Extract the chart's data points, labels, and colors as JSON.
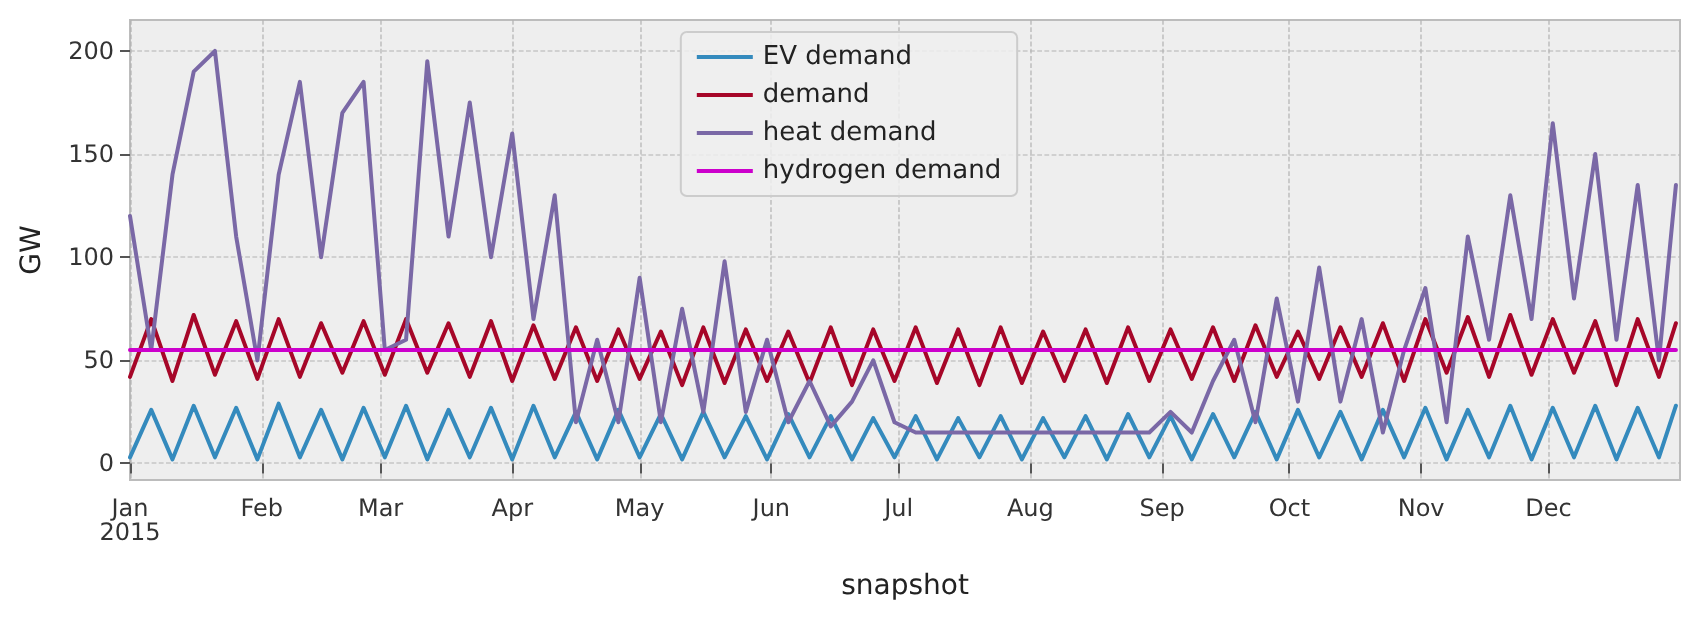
{
  "chart_data": {
    "type": "line",
    "xlabel": "snapshot",
    "ylabel": "GW",
    "x": [
      "2015-01-01",
      "2015-01-06",
      "2015-01-11",
      "2015-01-16",
      "2015-01-21",
      "2015-01-26",
      "2015-01-31",
      "2015-02-05",
      "2015-02-10",
      "2015-02-15",
      "2015-02-20",
      "2015-02-25",
      "2015-03-02",
      "2015-03-07",
      "2015-03-12",
      "2015-03-17",
      "2015-03-22",
      "2015-03-27",
      "2015-04-01",
      "2015-04-06",
      "2015-04-11",
      "2015-04-16",
      "2015-04-21",
      "2015-04-26",
      "2015-05-01",
      "2015-05-06",
      "2015-05-11",
      "2015-05-16",
      "2015-05-21",
      "2015-05-26",
      "2015-05-31",
      "2015-06-05",
      "2015-06-10",
      "2015-06-15",
      "2015-06-20",
      "2015-06-25",
      "2015-06-30",
      "2015-07-05",
      "2015-07-10",
      "2015-07-15",
      "2015-07-20",
      "2015-07-25",
      "2015-07-30",
      "2015-08-04",
      "2015-08-09",
      "2015-08-14",
      "2015-08-19",
      "2015-08-24",
      "2015-08-29",
      "2015-09-03",
      "2015-09-08",
      "2015-09-13",
      "2015-09-18",
      "2015-09-23",
      "2015-09-28",
      "2015-10-03",
      "2015-10-08",
      "2015-10-13",
      "2015-10-18",
      "2015-10-23",
      "2015-10-28",
      "2015-11-02",
      "2015-11-07",
      "2015-11-12",
      "2015-11-17",
      "2015-11-22",
      "2015-11-27",
      "2015-12-02",
      "2015-12-07",
      "2015-12-12",
      "2015-12-17",
      "2015-12-22",
      "2015-12-27",
      "2015-12-31"
    ],
    "series": [
      {
        "name": "EV demand",
        "color": "#348abd",
        "values": [
          3,
          26,
          2,
          28,
          3,
          27,
          2,
          29,
          3,
          26,
          2,
          27,
          3,
          28,
          2,
          26,
          3,
          27,
          2,
          28,
          3,
          25,
          2,
          26,
          3,
          24,
          2,
          25,
          3,
          23,
          2,
          24,
          3,
          23,
          2,
          22,
          3,
          23,
          2,
          22,
          3,
          23,
          2,
          22,
          3,
          23,
          2,
          24,
          3,
          23,
          2,
          24,
          3,
          25,
          2,
          26,
          3,
          25,
          2,
          26,
          3,
          27,
          2,
          26,
          3,
          28,
          2,
          27,
          3,
          28,
          2,
          27,
          3,
          28
        ]
      },
      {
        "name": "demand",
        "color": "#a60628",
        "values": [
          42,
          70,
          40,
          72,
          43,
          69,
          41,
          70,
          42,
          68,
          44,
          69,
          43,
          70,
          44,
          68,
          42,
          69,
          40,
          67,
          41,
          66,
          40,
          65,
          41,
          64,
          38,
          66,
          39,
          65,
          40,
          64,
          39,
          66,
          38,
          65,
          40,
          66,
          39,
          65,
          38,
          66,
          39,
          64,
          40,
          65,
          39,
          66,
          40,
          65,
          41,
          66,
          40,
          67,
          42,
          64,
          41,
          66,
          42,
          68,
          40,
          70,
          44,
          71,
          42,
          72,
          43,
          70,
          44,
          69,
          38,
          70,
          42,
          68
        ]
      },
      {
        "name": "heat demand",
        "color": "#7a68a6",
        "values": [
          120,
          55,
          140,
          190,
          200,
          110,
          50,
          140,
          185,
          100,
          170,
          185,
          55,
          60,
          195,
          110,
          175,
          100,
          160,
          70,
          130,
          20,
          60,
          20,
          90,
          20,
          75,
          25,
          98,
          25,
          60,
          20,
          40,
          18,
          30,
          50,
          20,
          15,
          15,
          15,
          15,
          15,
          15,
          15,
          15,
          15,
          15,
          15,
          15,
          25,
          15,
          40,
          60,
          20,
          80,
          30,
          95,
          30,
          70,
          15,
          55,
          85,
          20,
          110,
          60,
          130,
          70,
          165,
          80,
          150,
          60,
          135,
          50,
          135
        ]
      },
      {
        "name": "hydrogen demand",
        "color": "#cc00cc",
        "x": [
          "2015-01-01",
          "2015-12-31"
        ],
        "values": [
          55,
          55
        ]
      }
    ],
    "xlim": [
      "2015-01-01",
      "2015-12-31T23:00"
    ],
    "xticks": [
      {
        "value": "2015-01-01",
        "label": "Jan\n2015"
      },
      {
        "value": "2015-02-01",
        "label": "Feb"
      },
      {
        "value": "2015-03-01",
        "label": "Mar"
      },
      {
        "value": "2015-04-01",
        "label": "Apr"
      },
      {
        "value": "2015-05-01",
        "label": "May"
      },
      {
        "value": "2015-06-01",
        "label": "Jun"
      },
      {
        "value": "2015-07-01",
        "label": "Jul"
      },
      {
        "value": "2015-08-01",
        "label": "Aug"
      },
      {
        "value": "2015-09-01",
        "label": "Sep"
      },
      {
        "value": "2015-10-01",
        "label": "Oct"
      },
      {
        "value": "2015-11-01",
        "label": "Nov"
      },
      {
        "value": "2015-12-01",
        "label": "Dec"
      }
    ],
    "ylim": [
      -8,
      215
    ],
    "yticks": [
      0,
      50,
      100,
      150,
      200
    ],
    "grid": true,
    "legend": "top",
    "marker": "none",
    "line_style": "solid"
  }
}
